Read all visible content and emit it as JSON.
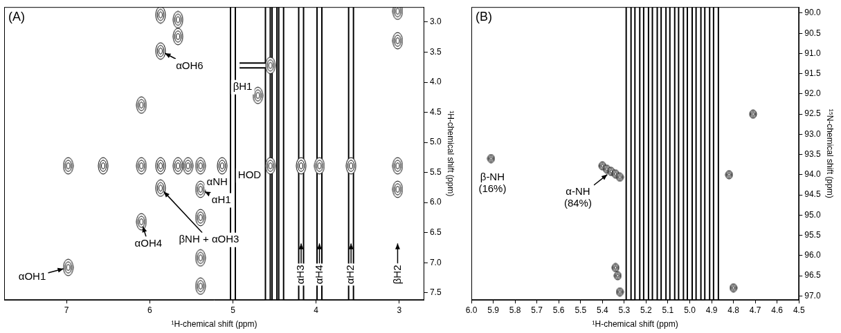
{
  "chart_data": [
    {
      "type": "contour",
      "panel_label": "(A)",
      "x_label": "¹H-chemical shift (ppm)",
      "y_label": "¹H-chemical shift (ppm)",
      "xlim": [
        7.75,
        2.7
      ],
      "ylim": [
        7.62,
        2.75
      ],
      "xticks": [
        7,
        6,
        5,
        4,
        3
      ],
      "yticks": [
        {
          "value": 3,
          "label": "3.0"
        },
        3.5,
        {
          "value": 4,
          "label": "4.0"
        },
        4.5,
        {
          "value": 5,
          "label": "5.0"
        },
        5.5,
        {
          "value": 6,
          "label": "6.0"
        },
        6.5,
        {
          "value": 7,
          "label": "7.0"
        },
        7.5
      ],
      "grid": false,
      "series": [
        {
          "type": "scatter",
          "marker": "contour",
          "x": [
            6.98,
            6.98,
            6.56,
            6.1,
            6.1,
            6.1,
            5.87,
            5.87,
            5.87,
            5.87,
            5.66,
            5.66,
            5.66,
            5.54,
            5.39,
            5.39,
            5.39,
            5.39,
            5.39,
            5.13,
            4.7,
            4.55,
            4.55,
            4.18,
            3.96,
            3.58,
            3.02,
            3.02,
            3.02,
            3.02
          ],
          "y": [
            5.39,
            7.08,
            5.39,
            4.38,
            5.39,
            6.32,
            2.88,
            3.48,
            5.39,
            5.76,
            2.96,
            3.24,
            5.39,
            5.39,
            5.39,
            5.78,
            6.25,
            6.92,
            7.39,
            5.39,
            4.22,
            5.39,
            3.72,
            5.39,
            5.39,
            5.39,
            2.82,
            3.31,
            5.39,
            5.78
          ]
        },
        {
          "type": "line",
          "line_style": "streak",
          "x": [
            5.0,
            5.0,
            null,
            4.58,
            4.58,
            null,
            4.5,
            4.5,
            null,
            4.42,
            4.42,
            null,
            4.18,
            4.18,
            null,
            3.96,
            3.96,
            null,
            3.58,
            3.58,
            null,
            4.92,
            4.55
          ],
          "y": [
            2.75,
            7.62,
            null,
            2.75,
            7.62,
            null,
            2.75,
            7.62,
            null,
            2.75,
            7.62,
            null,
            2.75,
            7.62,
            null,
            2.75,
            7.62,
            null,
            2.75,
            7.62,
            null,
            3.72,
            3.72
          ]
        }
      ],
      "annotations": [
        {
          "text": "αOH6",
          "x": 5.87,
          "y": 3.48
        },
        {
          "text": "βH1",
          "x": 4.7,
          "y": 4.22
        },
        {
          "text": "HOD",
          "x": 5.0,
          "y": 5.39
        },
        {
          "text": "αNH",
          "x": 5.39,
          "y": 5.39
        },
        {
          "text": "αH1",
          "x": 5.39,
          "y": 5.78
        },
        {
          "text": "βNH + αOH3",
          "x": 5.87,
          "y": 5.76
        },
        {
          "text": "αOH4",
          "x": 6.1,
          "y": 6.32
        },
        {
          "text": "αOH1",
          "x": 6.98,
          "y": 7.08
        },
        {
          "text": "αH3",
          "x": 4.18,
          "y": 6.6
        },
        {
          "text": "αH4",
          "x": 3.96,
          "y": 6.6
        },
        {
          "text": "αH2",
          "x": 3.58,
          "y": 6.6
        },
        {
          "text": "βH2",
          "x": 3.02,
          "y": 6.6
        }
      ]
    },
    {
      "type": "contour",
      "panel_label": "(B)",
      "x_label": "¹H-chemical shift (ppm)",
      "y_label": "¹⁵N-chemical shift (ppm)",
      "xlim": [
        6.0,
        4.5
      ],
      "ylim": [
        97.1,
        89.85
      ],
      "xticks": [
        {
          "value": 6,
          "label": "6.0"
        },
        5.9,
        5.8,
        5.7,
        5.6,
        5.5,
        5.4,
        5.3,
        5.2,
        5.1,
        {
          "value": 5,
          "label": "5.0"
        },
        4.9,
        4.8,
        4.7,
        4.6,
        4.5
      ],
      "yticks": [
        {
          "value": 90,
          "label": "90.0"
        },
        90.5,
        {
          "value": 91,
          "label": "91.0"
        },
        91.5,
        {
          "value": 92,
          "label": "92.0"
        },
        92.5,
        {
          "value": 93,
          "label": "93.0"
        },
        93.5,
        {
          "value": 94,
          "label": "94.0"
        },
        94.5,
        {
          "value": 95,
          "label": "95.0"
        },
        95.5,
        {
          "value": 96,
          "label": "96.0"
        },
        96.5,
        {
          "value": 97,
          "label": "97.0"
        }
      ],
      "grid": false,
      "series": [
        {
          "type": "scatter",
          "marker": "contour",
          "x": [
            5.91,
            5.4,
            5.38,
            5.36,
            5.34,
            5.32,
            5.34,
            5.33,
            5.32,
            4.82,
            4.71,
            4.8
          ],
          "y": [
            93.6,
            93.78,
            93.86,
            93.92,
            93.98,
            94.06,
            96.3,
            96.5,
            96.9,
            94.0,
            92.5,
            96.8
          ]
        },
        {
          "type": "line",
          "line_style": "streak",
          "x": [
            5.28,
            5.28,
            null,
            5.24,
            5.24,
            null,
            5.2,
            5.2,
            null,
            5.16,
            5.16,
            null,
            5.12,
            5.12,
            null,
            5.08,
            5.08,
            null,
            5.04,
            5.04,
            null,
            5.0,
            5.0,
            null,
            4.96,
            4.96,
            null,
            4.92,
            4.92,
            null,
            4.88,
            4.88
          ],
          "y": [
            89.85,
            97.1,
            null,
            89.85,
            97.1,
            null,
            89.85,
            97.1,
            null,
            89.85,
            97.1,
            null,
            89.85,
            97.1,
            null,
            89.85,
            97.1,
            null,
            89.85,
            97.1,
            null,
            89.85,
            97.1,
            null,
            89.85,
            97.1,
            null,
            89.85,
            97.1,
            null,
            89.85,
            97.1
          ]
        }
      ],
      "annotations": [
        {
          "text": [
            "β-NH",
            "(16%)"
          ],
          "x": 5.91,
          "y": 93.6
        },
        {
          "text": [
            "α-NH",
            "(84%)"
          ],
          "x": 5.36,
          "y": 93.92
        }
      ]
    }
  ]
}
